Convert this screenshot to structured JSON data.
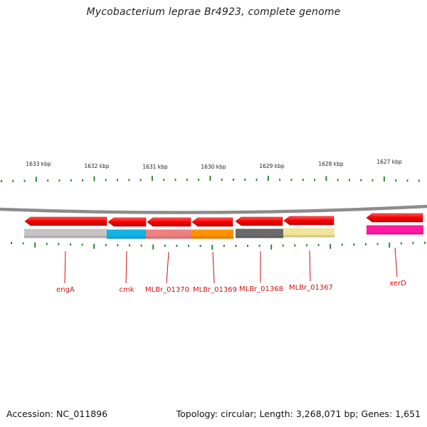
{
  "title": "Mycobacterium leprae Br4923, complete genome",
  "accession": "Accession: NC_011896",
  "stats": "Topology: circular; Length: 3,268,071 bp; Genes: 1,651",
  "colors": {
    "backbone": "#8c8c8c",
    "tick": "#2a8a2a",
    "gene_arrow": "#ff0000",
    "label": "#cc1111"
  },
  "scale_labels": [
    "1633 kbp",
    "1632 kbp",
    "1631 kbp",
    "1630 kbp",
    "1629 kbp",
    "1628 kbp",
    "1627 kbp"
  ],
  "genes": [
    {
      "name": "engA",
      "color": "#c4c4c4"
    },
    {
      "name": "cmk",
      "color": "#12b3e6"
    },
    {
      "name": "MLBr_01370",
      "color": "#ee8080"
    },
    {
      "name": "MLBr_01369",
      "color": "#ff9000"
    },
    {
      "name": "MLBr_01368",
      "color": "#6a6a6a"
    },
    {
      "name": "MLBr_01367",
      "color": "#f0e49a"
    },
    {
      "name": "xerD",
      "color": "#ff1aa0"
    }
  ]
}
